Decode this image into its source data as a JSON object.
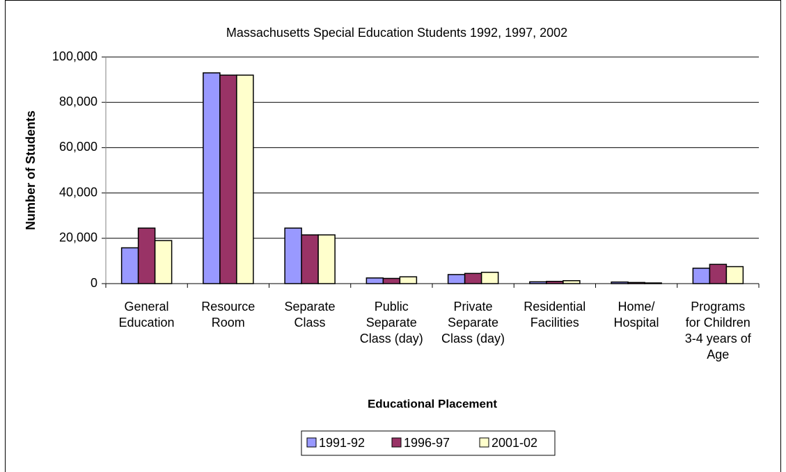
{
  "chart_data": {
    "type": "bar",
    "title": "Massachusetts Special Education Students 1992, 1997, 2002",
    "x_label": "Educational Placement",
    "y_label": "Number of Students",
    "categories": [
      "General\nEducation",
      "Resource\nRoom",
      "Separate\nClass",
      "Public\nSeparate\nClass (day)",
      "Private\nSeparate\nClass (day)",
      "Residential\nFacilities",
      "Home/\nHospital",
      "Programs\nfor Children\n3-4 years of\nAge"
    ],
    "series": [
      {
        "name": "1991-92",
        "color": "#9999ff",
        "values": [
          15800,
          93000,
          24500,
          2500,
          4000,
          800,
          700,
          6800
        ]
      },
      {
        "name": "1996-97",
        "color": "#993366",
        "values": [
          24500,
          92000,
          21500,
          2300,
          4500,
          1000,
          500,
          8500
        ]
      },
      {
        "name": "2001-02",
        "color": "#ffffcc",
        "values": [
          19000,
          92000,
          21500,
          3000,
          5000,
          1300,
          300,
          7500
        ]
      }
    ],
    "ylim": [
      0,
      100000
    ],
    "yticks": [
      0,
      {
        "value": 20000,
        "label": "20,000"
      },
      {
        "value": 40000,
        "label": "40,000"
      },
      {
        "value": 60000,
        "label": "60,000"
      },
      {
        "value": 80000,
        "label": "80,000"
      },
      {
        "value": 100000,
        "label": "100,000"
      }
    ],
    "grid": true,
    "legend": "bottom"
  }
}
